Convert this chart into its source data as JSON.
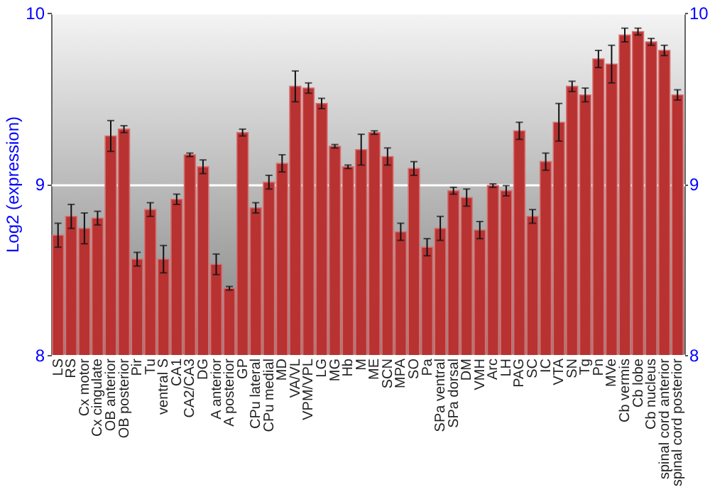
{
  "chart_data": {
    "type": "bar",
    "ylabel": "Log2 (expression)",
    "categories": [
      "LS",
      "RS",
      "Cx motor",
      "Cx cingulate",
      "OB anterior",
      "OB posterior",
      "Pir",
      "Tu",
      "ventral S",
      "CA1",
      "CA2/CA3",
      "DG",
      "A anterior",
      "A posterior",
      "GP",
      "CPu lateral",
      "CPu medial",
      "MD",
      "VA/VL",
      "VPM/VPL",
      "LG",
      "MG",
      "Hb",
      "M",
      "ME",
      "SCN",
      "MPA",
      "SO",
      "Pa",
      "SPa ventral",
      "SPa dorsal",
      "DM",
      "VMH",
      "Arc",
      "LH",
      "PAG",
      "SC",
      "IC",
      "VTA",
      "SN",
      "Tg",
      "Pn",
      "MVe",
      "Cb vermis",
      "Cb lobe",
      "Cb nucleus",
      "spinal cord anterior",
      "spinal cord posterior"
    ],
    "values": [
      8.7,
      8.81,
      8.74,
      8.8,
      9.28,
      9.32,
      8.56,
      8.85,
      8.56,
      8.91,
      9.17,
      9.1,
      8.53,
      8.39,
      9.3,
      8.86,
      9.01,
      9.12,
      9.57,
      9.56,
      9.47,
      9.22,
      9.1,
      9.2,
      9.3,
      9.16,
      8.72,
      9.09,
      8.63,
      8.74,
      8.96,
      8.92,
      8.73,
      8.99,
      8.96,
      9.31,
      8.81,
      9.13,
      9.36,
      9.57,
      9.52,
      9.73,
      9.7,
      9.87,
      9.89,
      9.83,
      9.78,
      9.52
    ],
    "errors": [
      0.07,
      0.07,
      0.09,
      0.04,
      0.09,
      0.02,
      0.04,
      0.04,
      0.08,
      0.03,
      0.01,
      0.04,
      0.06,
      0.01,
      0.02,
      0.03,
      0.04,
      0.05,
      0.09,
      0.03,
      0.03,
      0.01,
      0.01,
      0.09,
      0.01,
      0.05,
      0.05,
      0.04,
      0.05,
      0.07,
      0.02,
      0.05,
      0.05,
      0.01,
      0.03,
      0.05,
      0.04,
      0.05,
      0.11,
      0.03,
      0.04,
      0.05,
      0.11,
      0.04,
      0.02,
      0.02,
      0.03,
      0.03
    ],
    "color": "#b83232",
    "ylim": [
      8,
      10
    ],
    "yticks": [
      8,
      9,
      10
    ],
    "y2lim": [
      8,
      10
    ],
    "y2ticks": [
      8,
      9,
      10
    ],
    "grid": "y"
  }
}
